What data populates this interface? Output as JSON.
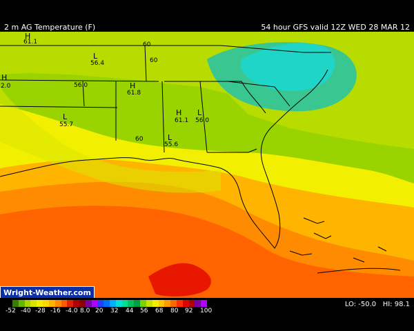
{
  "header": {
    "left_title": "2 m AG Temperature (F)",
    "right_title": "54 hour GFS valid 12Z WED 28 MAR 12"
  },
  "map_labels": [
    {
      "text": "H",
      "kind": "H"
    },
    {
      "text": "61.1",
      "kind": "value"
    },
    {
      "text": "60",
      "kind": "value"
    },
    {
      "text": "L",
      "kind": "L"
    },
    {
      "text": "56.4",
      "kind": "value"
    },
    {
      "text": "60",
      "kind": "value"
    },
    {
      "text": "H",
      "kind": "H"
    },
    {
      "text": "2.0",
      "kind": "value"
    },
    {
      "text": "56.0",
      "kind": "value"
    },
    {
      "text": "H",
      "kind": "H"
    },
    {
      "text": "61.8",
      "kind": "value"
    },
    {
      "text": "H",
      "kind": "H"
    },
    {
      "text": "L",
      "kind": "L"
    },
    {
      "text": "61.1",
      "kind": "value"
    },
    {
      "text": "56.0",
      "kind": "value"
    },
    {
      "text": "L",
      "kind": "L"
    },
    {
      "text": "55.7",
      "kind": "value"
    },
    {
      "text": "60",
      "kind": "value"
    },
    {
      "text": "L",
      "kind": "L"
    },
    {
      "text": "55.6",
      "kind": "value"
    }
  ],
  "brand": "Wright-Weather.com",
  "legend": {
    "ticks": [
      "-52",
      "-40",
      "-28",
      "-16",
      "-4.0",
      "8.0",
      "20",
      "32",
      "44",
      "56",
      "68",
      "80",
      "92",
      "100"
    ],
    "colors": [
      "#3a7d00",
      "#66b500",
      "#a8d400",
      "#d6e400",
      "#f4ef00",
      "#ffd800",
      "#ffb000",
      "#ff8a00",
      "#ff5a00",
      "#e02000",
      "#b00000",
      "#8a0000",
      "#7a00a0",
      "#b000ff",
      "#2a3cff",
      "#0070ff",
      "#00b0ff",
      "#00e0d8",
      "#00e090",
      "#00c060",
      "#00a040",
      "#7ad400",
      "#c8e000",
      "#f0f000",
      "#ffc800",
      "#ff9a00",
      "#ff6a00",
      "#ff3000",
      "#e00000",
      "#b00000",
      "#7a00a0",
      "#b000ff"
    ]
  },
  "stats": {
    "lo_label": "LO: -50.0",
    "hi_label": "HI: 98.1"
  }
}
